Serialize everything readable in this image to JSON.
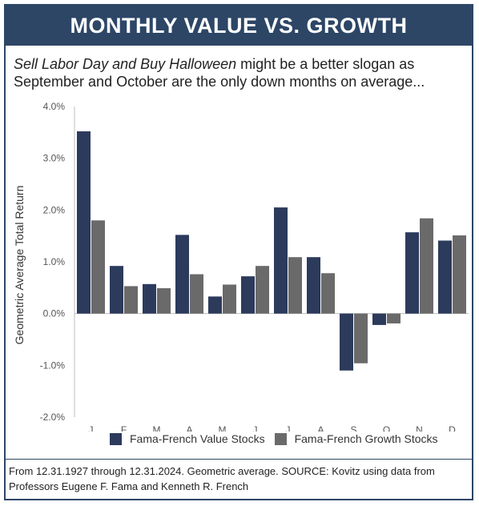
{
  "header": {
    "title": "MONTHLY VALUE VS. GROWTH"
  },
  "subtitle": {
    "italic": "Sell Labor Day and Buy Halloween",
    "rest": " might be a better slogan as September and October are the only down months on average..."
  },
  "footnote": "From 12.31.1927 through 12.31.2024. Geometric average. SOURCE: Kovitz using data from Professors Eugene F. Fama and Kenneth R. French",
  "colors": {
    "header_bg": "#2d4666",
    "value": "#2c3a5c",
    "growth": "#6a6a6a"
  },
  "chart_data": {
    "type": "bar",
    "title": "MONTHLY VALUE VS. GROWTH",
    "xlabel": "",
    "ylabel": "Geometric Average Total Return",
    "ylim": [
      -2.0,
      4.0
    ],
    "yticks": [
      4.0,
      3.0,
      2.0,
      1.0,
      0.0,
      -1.0,
      -2.0
    ],
    "ytick_labels": [
      "4.0%",
      "3.0%",
      "2.0%",
      "1.0%",
      "0.0%",
      "-1.0%",
      "-2.0%"
    ],
    "categories": [
      "J",
      "F",
      "M",
      "A",
      "M",
      "J",
      "J",
      "A",
      "S",
      "O",
      "N",
      "D"
    ],
    "series": [
      {
        "name": "Fama-French Value Stocks",
        "color": "#2c3a5c",
        "values": [
          3.52,
          0.92,
          0.57,
          1.52,
          0.33,
          0.72,
          2.05,
          1.09,
          -1.1,
          -0.22,
          1.57,
          1.41
        ]
      },
      {
        "name": "Fama-French Growth Stocks",
        "color": "#6a6a6a",
        "values": [
          1.8,
          0.53,
          0.49,
          0.76,
          0.56,
          0.92,
          1.09,
          0.78,
          -0.96,
          -0.19,
          1.84,
          1.51
        ]
      }
    ],
    "grid": false,
    "legend_position": "bottom"
  }
}
